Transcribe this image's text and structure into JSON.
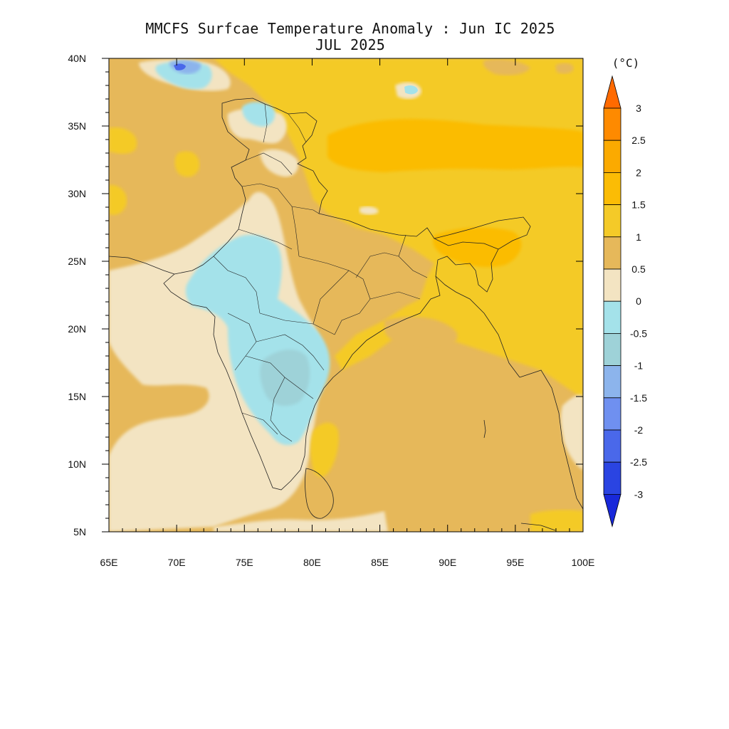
{
  "title_line1": "MMCFS Surfcae Temperature Anomaly : Jun IC 2025",
  "title_line2": "JUL 2025",
  "map": {
    "lon_range": [
      65,
      100
    ],
    "lat_range": [
      5,
      40
    ],
    "x_ticks": [
      "65E",
      "70E",
      "75E",
      "80E",
      "85E",
      "90E",
      "95E",
      "100E"
    ],
    "y_ticks": [
      "5N",
      "10N",
      "15N",
      "20N",
      "25N",
      "30N",
      "35N",
      "40N"
    ]
  },
  "colorbar": {
    "unit": "(°C)",
    "levels": [
      "3",
      "2.5",
      "2",
      "1.5",
      "1",
      "0.5",
      "0",
      "-0.5",
      "-1",
      "-1.5",
      "-2",
      "-2.5",
      "-3"
    ],
    "colors": [
      "#ff6a00",
      "#fe8a00",
      "#fbaa00",
      "#fbbc05",
      "#f4ca28",
      "#e6b85a",
      "#f3e4c2",
      "#a4e2ea",
      "#9ed2d8",
      "#8cb4ec",
      "#6f90f0",
      "#4a68ea",
      "#2a44e2",
      "#1828da"
    ]
  }
}
